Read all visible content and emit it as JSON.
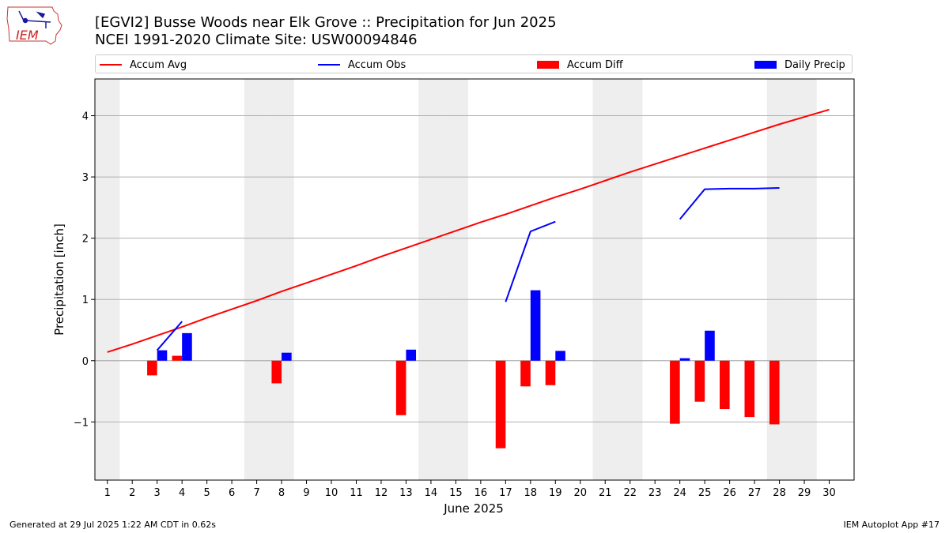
{
  "header": {
    "title_line1": "[EGVI2] Busse Woods near Elk Grove :: Precipitation for Jun 2025",
    "title_line2": "NCEI 1991-2020 Climate Site: USW00094846",
    "logo_text": "IEM"
  },
  "legend": {
    "accum_avg": "Accum Avg",
    "accum_obs": "Accum Obs",
    "accum_diff": "Accum Diff",
    "daily_precip": "Daily Precip"
  },
  "footer": {
    "generated": "Generated at 29 Jul 2025 1:22 AM CDT in 0.62s",
    "app": "IEM Autoplot App #17"
  },
  "colors": {
    "accum_avg": "#ff0000",
    "accum_obs": "#0000ff",
    "accum_diff": "#ff0000",
    "daily_precip": "#0000ff",
    "weekend_shade": "#eeeeee",
    "grid": "#b0b0b0"
  },
  "chart_data": {
    "type": "bar",
    "xlabel": "June 2025",
    "ylabel": "Precipitation [inch]",
    "xlim": [
      0.5,
      31.0
    ],
    "ylim": [
      -1.95,
      4.6
    ],
    "yticks": [
      -1,
      0,
      1,
      2,
      3,
      4
    ],
    "ytick_labels": [
      "−1",
      "0",
      "1",
      "2",
      "3",
      "4"
    ],
    "xticks": [
      1,
      2,
      3,
      4,
      5,
      6,
      7,
      8,
      9,
      10,
      11,
      12,
      13,
      14,
      15,
      16,
      17,
      18,
      19,
      20,
      21,
      22,
      23,
      24,
      25,
      26,
      27,
      28,
      29,
      30
    ],
    "grid": "horizontal",
    "weekend_days": [
      1,
      7,
      8,
      14,
      15,
      21,
      22,
      28,
      29
    ],
    "accum_avg": {
      "days": [
        1,
        2,
        3,
        4,
        5,
        6,
        7,
        8,
        9,
        10,
        11,
        12,
        13,
        14,
        15,
        16,
        17,
        18,
        19,
        20,
        21,
        22,
        23,
        24,
        25,
        26,
        27,
        28,
        29,
        30
      ],
      "values": [
        0.14,
        0.27,
        0.41,
        0.55,
        0.7,
        0.84,
        0.98,
        1.13,
        1.27,
        1.41,
        1.55,
        1.7,
        1.84,
        1.98,
        2.12,
        2.26,
        2.39,
        2.53,
        2.67,
        2.8,
        2.94,
        3.08,
        3.21,
        3.34,
        3.47,
        3.6,
        3.73,
        3.86,
        3.98,
        4.1
      ]
    },
    "accum_obs_segments": [
      {
        "days": [
          3,
          4
        ],
        "values": [
          0.17,
          0.64
        ]
      },
      {
        "days": [
          17,
          18,
          19
        ],
        "values": [
          0.96,
          2.11,
          2.27
        ]
      },
      {
        "days": [
          24,
          25,
          26,
          27,
          28
        ],
        "values": [
          2.31,
          2.8,
          2.81,
          2.81,
          2.82
        ]
      }
    ],
    "accum_diff": {
      "days": [
        3,
        4,
        8,
        13,
        17,
        18,
        19,
        24,
        25,
        26,
        27,
        28
      ],
      "values": [
        -0.24,
        0.08,
        -0.37,
        -0.89,
        -1.43,
        -0.42,
        -0.4,
        -1.03,
        -0.67,
        -0.79,
        -0.92,
        -1.04
      ]
    },
    "daily_precip": {
      "days": [
        3,
        4,
        8,
        13,
        18,
        19,
        24,
        25
      ],
      "values": [
        0.17,
        0.45,
        0.13,
        0.18,
        1.15,
        0.16,
        0.04,
        0.49
      ]
    }
  }
}
